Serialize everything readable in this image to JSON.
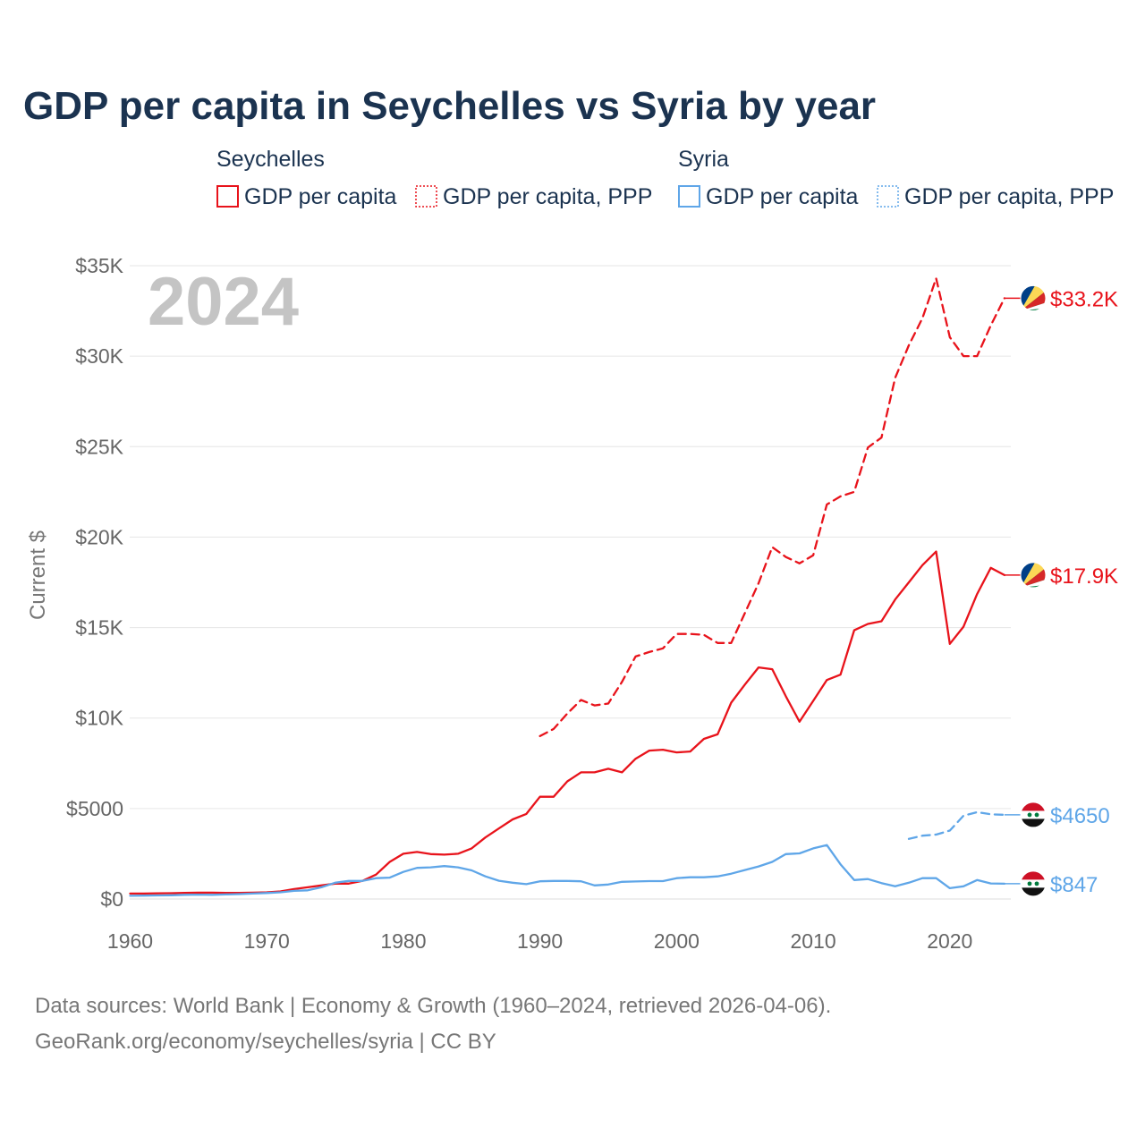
{
  "title": "GDP per capita in Seychelles vs Syria by year",
  "year_overlay": "2024",
  "colors": {
    "seychelles": "#e8131b",
    "syria": "#5fa6e8",
    "title": "#1b3350"
  },
  "legend": {
    "groups": [
      {
        "name": "Seychelles",
        "items": [
          {
            "label": "GDP per capita",
            "style": "solid",
            "color": "#e8131b"
          },
          {
            "label": "GDP per capita, PPP",
            "style": "dotted",
            "color": "#e8131b"
          }
        ]
      },
      {
        "name": "Syria",
        "items": [
          {
            "label": "GDP per capita",
            "style": "solid",
            "color": "#5fa6e8"
          },
          {
            "label": "GDP per capita, PPP",
            "style": "dotted",
            "color": "#5fa6e8"
          }
        ]
      }
    ]
  },
  "chart_data": {
    "type": "line",
    "ylabel": "Current $",
    "xlabel": "",
    "xlim": [
      1960,
      2024.5
    ],
    "ylim": [
      0,
      35000
    ],
    "x_ticks": [
      1960,
      1970,
      1980,
      1990,
      2000,
      2010,
      2020
    ],
    "x_tick_labels": [
      "1960",
      "1970",
      "1980",
      "1990",
      "2000",
      "2010",
      "2020"
    ],
    "y_ticks": [
      0,
      5000,
      10000,
      15000,
      20000,
      25000,
      30000,
      35000
    ],
    "y_tick_labels": [
      "$0",
      "$5000",
      "$10K",
      "$15K",
      "$20K",
      "$25K",
      "$30K",
      "$35K"
    ],
    "series": [
      {
        "name": "Seychelles GDP per capita",
        "country": "Seychelles",
        "dash": "solid",
        "color": "#e8131b",
        "end_label": "$17.9K",
        "flag": "seychelles",
        "x": [
          1960,
          1961,
          1962,
          1963,
          1964,
          1965,
          1966,
          1967,
          1968,
          1969,
          1970,
          1971,
          1972,
          1973,
          1974,
          1975,
          1976,
          1977,
          1978,
          1979,
          1980,
          1981,
          1982,
          1983,
          1984,
          1985,
          1986,
          1987,
          1988,
          1989,
          1990,
          1991,
          1992,
          1993,
          1994,
          1995,
          1996,
          1997,
          1998,
          1999,
          2000,
          2001,
          2002,
          2003,
          2004,
          2005,
          2006,
          2007,
          2008,
          2009,
          2010,
          2011,
          2012,
          2013,
          2014,
          2015,
          2016,
          2017,
          2018,
          2019,
          2020,
          2021,
          2022,
          2023,
          2024
        ],
        "y": [
          300,
          300,
          310,
          320,
          340,
          350,
          350,
          340,
          340,
          350,
          370,
          420,
          550,
          650,
          750,
          850,
          850,
          1000,
          1350,
          2050,
          2500,
          2600,
          2480,
          2450,
          2500,
          2800,
          3400,
          3900,
          4400,
          4700,
          5650,
          5650,
          6500,
          7000,
          7000,
          7200,
          7000,
          7750,
          8200,
          8250,
          8100,
          8150,
          8850,
          9100,
          10850,
          11850,
          12800,
          12700,
          11200,
          9800,
          10950,
          12100,
          12400,
          14850,
          15200,
          15350,
          16550,
          17500,
          18450,
          19200,
          14100,
          15050,
          16850,
          18300,
          17900
        ]
      },
      {
        "name": "Seychelles GDP per capita, PPP",
        "country": "Seychelles",
        "dash": "dashed",
        "color": "#e8131b",
        "end_label": "$33.2K",
        "flag": "seychelles",
        "x": [
          1990,
          1991,
          1992,
          1993,
          1994,
          1995,
          1996,
          1997,
          1998,
          1999,
          2000,
          2001,
          2002,
          2003,
          2004,
          2005,
          2006,
          2007,
          2008,
          2009,
          2010,
          2011,
          2012,
          2013,
          2014,
          2015,
          2016,
          2017,
          2018,
          2019,
          2020,
          2021,
          2022,
          2023,
          2024
        ],
        "y": [
          9000,
          9400,
          10250,
          11000,
          10700,
          10800,
          12000,
          13400,
          13650,
          13850,
          14650,
          14650,
          14600,
          14150,
          14150,
          15800,
          17450,
          19450,
          18900,
          18550,
          19000,
          21800,
          22250,
          22500,
          24950,
          25500,
          28800,
          30600,
          32100,
          34300,
          31050,
          30000,
          30000,
          31700,
          33200
        ]
      },
      {
        "name": "Syria GDP per capita",
        "country": "Syria",
        "dash": "solid",
        "color": "#5fa6e8",
        "end_label": "$847",
        "flag": "syria",
        "x": [
          1960,
          1961,
          1962,
          1963,
          1964,
          1965,
          1966,
          1967,
          1968,
          1969,
          1970,
          1971,
          1972,
          1973,
          1974,
          1975,
          1976,
          1977,
          1978,
          1979,
          1980,
          1981,
          1982,
          1983,
          1984,
          1985,
          1986,
          1987,
          1988,
          1989,
          1990,
          1991,
          1992,
          1993,
          1994,
          1995,
          1996,
          1997,
          1998,
          1999,
          2000,
          2001,
          2002,
          2003,
          2004,
          2005,
          2006,
          2007,
          2008,
          2009,
          2010,
          2011,
          2012,
          2013,
          2014,
          2015,
          2016,
          2017,
          2018,
          2019,
          2020,
          2021,
          2022,
          2023,
          2024
        ],
        "y": [
          180,
          190,
          200,
          210,
          230,
          240,
          230,
          250,
          270,
          300,
          330,
          370,
          450,
          480,
          650,
          900,
          1000,
          1000,
          1150,
          1180,
          1500,
          1720,
          1750,
          1820,
          1750,
          1580,
          1250,
          1010,
          900,
          820,
          980,
          1000,
          1000,
          980,
          750,
          800,
          950,
          970,
          990,
          990,
          1150,
          1200,
          1200,
          1250,
          1400,
          1600,
          1800,
          2050,
          2480,
          2520,
          2800,
          2980,
          1920,
          1050,
          1100,
          880,
          700,
          900,
          1150,
          1150,
          600,
          700,
          1050,
          860,
          847
        ]
      },
      {
        "name": "Syria GDP per capita, PPP",
        "country": "Syria",
        "dash": "dashed",
        "color": "#5fa6e8",
        "end_label": "$4650",
        "flag": "syria",
        "x": [
          2017,
          2018,
          2019,
          2020,
          2021,
          2022,
          2023,
          2024
        ],
        "y": [
          3320,
          3500,
          3560,
          3780,
          4600,
          4800,
          4680,
          4650
        ]
      }
    ]
  },
  "sources": {
    "line1": "Data sources: World Bank | Economy & Growth (1960–2024, retrieved 2026-04-06).",
    "line2": "GeoRank.org/economy/seychelles/syria | CC BY"
  }
}
